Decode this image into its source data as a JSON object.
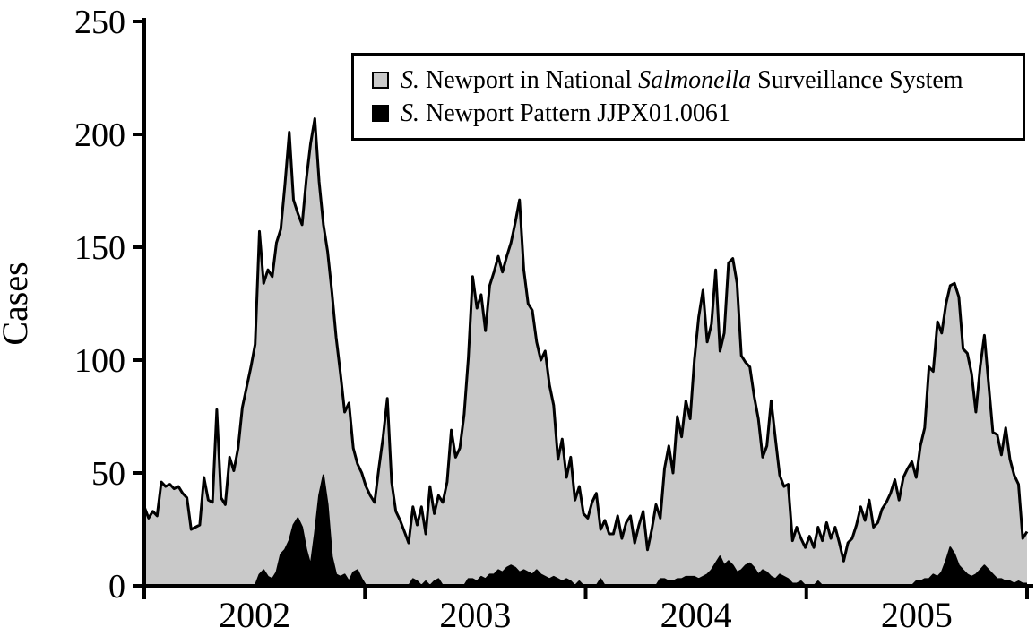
{
  "figure": {
    "background": "#ffffff",
    "axis_color": "#000000"
  },
  "chart_data": {
    "type": "area",
    "title": "",
    "xlabel": "",
    "ylabel": "Cases",
    "ylim": [
      0,
      250
    ],
    "yticks": [
      0,
      50,
      100,
      150,
      200,
      250
    ],
    "grid": false,
    "legend_position": "top-right-inside",
    "x_unit": "week",
    "points_per_year": 52,
    "x_year_labels": [
      "2002",
      "2003",
      "2004",
      "2005"
    ],
    "series": [
      {
        "name": "S. Newport in National Salmonella Surveillance System",
        "label_segments": [
          {
            "text": "S.",
            "italic": true
          },
          {
            "text": " Newport in National ",
            "italic": false
          },
          {
            "text": "Salmonella",
            "italic": true
          },
          {
            "text": " Surveillance System",
            "italic": false
          }
        ],
        "fill": "#c9c9c9",
        "stroke": "#000000",
        "values": [
          35,
          30,
          33,
          31,
          46,
          44,
          45,
          43,
          44,
          41,
          39,
          25,
          26,
          27,
          48,
          38,
          37,
          78,
          39,
          36,
          57,
          51,
          61,
          79,
          88,
          97,
          107,
          157,
          134,
          140,
          137,
          152,
          158,
          178,
          201,
          171,
          165,
          160,
          180,
          196,
          207,
          179,
          160,
          148,
          130,
          110,
          94,
          77,
          81,
          61,
          54,
          50,
          44,
          40,
          37,
          52,
          66,
          83,
          46,
          33,
          29,
          24,
          19,
          35,
          27,
          35,
          23,
          44,
          32,
          40,
          37,
          46,
          69,
          57,
          61,
          76,
          101,
          137,
          123,
          129,
          113,
          133,
          139,
          146,
          139,
          146,
          152,
          161,
          171,
          140,
          125,
          122,
          108,
          100,
          104,
          89,
          80,
          56,
          65,
          48,
          57,
          38,
          44,
          32,
          30,
          37,
          41,
          25,
          29,
          23,
          23,
          31,
          21,
          28,
          31,
          19,
          27,
          33,
          16,
          25,
          36,
          30,
          52,
          62,
          50,
          75,
          66,
          82,
          74,
          100,
          119,
          131,
          108,
          116,
          140,
          104,
          112,
          143,
          145,
          134,
          102,
          99,
          97,
          84,
          74,
          57,
          62,
          82,
          65,
          49,
          44,
          45,
          20,
          26,
          21,
          17,
          22,
          17,
          26,
          20,
          28,
          21,
          26,
          19,
          11,
          19,
          21,
          27,
          35,
          29,
          38,
          26,
          28,
          34,
          37,
          41,
          47,
          38,
          48,
          52,
          55,
          48,
          62,
          70,
          97,
          95,
          117,
          112,
          125,
          133,
          134,
          128,
          105,
          103,
          94,
          77,
          97,
          111,
          89,
          68,
          67,
          58,
          70,
          56,
          49,
          45,
          21,
          24
        ]
      },
      {
        "name": "S. Newport Pattern JJPX01.0061",
        "label_segments": [
          {
            "text": "S.",
            "italic": true
          },
          {
            "text": " Newport Pattern JJPX01.0061",
            "italic": false
          }
        ],
        "fill": "#000000",
        "stroke": "#000000",
        "values": [
          0,
          0,
          0,
          0,
          0,
          0,
          0,
          0,
          0,
          0,
          0,
          0,
          0,
          0,
          0,
          0,
          0,
          0,
          0,
          0,
          0,
          0,
          0,
          0,
          0,
          0,
          0,
          5,
          7,
          4,
          3,
          6,
          14,
          16,
          20,
          27,
          30,
          26,
          16,
          9,
          23,
          40,
          49,
          36,
          13,
          5,
          4,
          5,
          2,
          6,
          7,
          3,
          0,
          0,
          0,
          0,
          0,
          0,
          0,
          0,
          0,
          0,
          0,
          3,
          2,
          0,
          2,
          0,
          2,
          3,
          0,
          0,
          0,
          0,
          0,
          0,
          3,
          3,
          2,
          4,
          3,
          5,
          5,
          7,
          6,
          8,
          9,
          8,
          6,
          7,
          6,
          5,
          7,
          5,
          4,
          3,
          4,
          3,
          2,
          3,
          2,
          0,
          2,
          0,
          0,
          0,
          0,
          3,
          0,
          0,
          0,
          0,
          0,
          0,
          0,
          0,
          0,
          0,
          0,
          0,
          0,
          3,
          3,
          2,
          2,
          3,
          3,
          4,
          4,
          4,
          3,
          4,
          5,
          7,
          10,
          13,
          9,
          11,
          9,
          6,
          7,
          9,
          10,
          8,
          5,
          7,
          6,
          4,
          3,
          5,
          4,
          3,
          1,
          1,
          2,
          0,
          0,
          0,
          2,
          0,
          0,
          0,
          0,
          0,
          0,
          0,
          0,
          0,
          0,
          0,
          0,
          0,
          0,
          0,
          0,
          0,
          0,
          0,
          0,
          0,
          0,
          2,
          2,
          3,
          3,
          5,
          4,
          6,
          11,
          17,
          14,
          9,
          7,
          5,
          4,
          5,
          7,
          9,
          7,
          5,
          3,
          3,
          2,
          2,
          1,
          2,
          1,
          1
        ]
      }
    ]
  }
}
